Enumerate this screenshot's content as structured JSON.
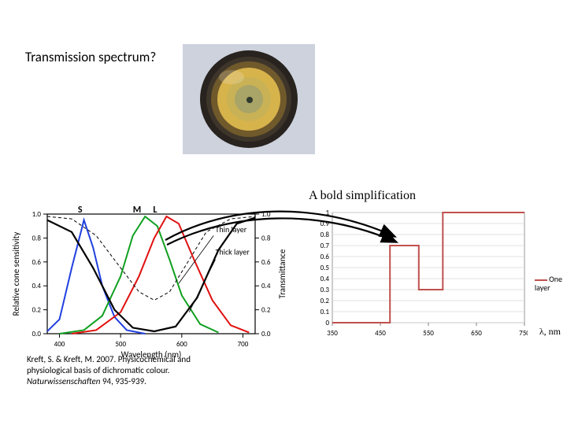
{
  "title": "Transmission spectrum?",
  "simplification_label": "A bold simplification",
  "citation": {
    "line1": "Kreft, S. & Kreft, M. 2007. Physicochemical and",
    "line2": "physiological basis of dichromatic colour.",
    "journal": "Naturwissenschaften",
    "ref": " 94, 935-939."
  },
  "petri": {
    "bg": "#cfd3df",
    "ring_outer": "#2a2522",
    "ring_mid": "#6e5a2a",
    "ring_gold": "#d6b24b",
    "center": "#a8a46a",
    "dot": "#2f3a2e"
  },
  "left_chart": {
    "type": "line",
    "bg": "#ffffff",
    "axis_color": "#000000",
    "xlabel": "Wavelength (nm)",
    "ylabel_left": "Relative cone sensitivity",
    "ylabel_right": "Transmittance",
    "x": {
      "min": 380,
      "max": 720,
      "ticks": [
        400,
        500,
        600,
        700
      ]
    },
    "y": {
      "min": 0,
      "max": 1.0,
      "ticks": [
        0.0,
        0.2,
        0.4,
        0.6,
        0.8,
        1.0
      ]
    },
    "label_fontsize": 11,
    "tick_fontsize": 9,
    "series": {
      "S": {
        "color": "#2040e0",
        "width": 2,
        "letter": "S",
        "points": [
          [
            380,
            0.02
          ],
          [
            400,
            0.12
          ],
          [
            420,
            0.55
          ],
          [
            440,
            0.95
          ],
          [
            455,
            0.72
          ],
          [
            470,
            0.4
          ],
          [
            490,
            0.14
          ],
          [
            510,
            0.03
          ],
          [
            540,
            0.0
          ]
        ]
      },
      "M": {
        "color": "#10a020",
        "width": 2,
        "letter": "M",
        "points": [
          [
            400,
            0.0
          ],
          [
            440,
            0.03
          ],
          [
            470,
            0.15
          ],
          [
            500,
            0.48
          ],
          [
            520,
            0.82
          ],
          [
            540,
            0.98
          ],
          [
            560,
            0.9
          ],
          [
            580,
            0.62
          ],
          [
            600,
            0.32
          ],
          [
            630,
            0.08
          ],
          [
            660,
            0.01
          ]
        ]
      },
      "L": {
        "color": "#e01010",
        "width": 2,
        "letter": "L",
        "points": [
          [
            420,
            0.0
          ],
          [
            460,
            0.03
          ],
          [
            500,
            0.18
          ],
          [
            530,
            0.48
          ],
          [
            555,
            0.8
          ],
          [
            575,
            0.98
          ],
          [
            595,
            0.92
          ],
          [
            620,
            0.62
          ],
          [
            650,
            0.28
          ],
          [
            680,
            0.07
          ],
          [
            710,
            0.01
          ]
        ]
      },
      "thin": {
        "color": "#000000",
        "width": 1,
        "dash": "4,3",
        "label": "Thin layer",
        "points": [
          [
            380,
            0.98
          ],
          [
            420,
            0.96
          ],
          [
            460,
            0.82
          ],
          [
            500,
            0.55
          ],
          [
            530,
            0.35
          ],
          [
            555,
            0.28
          ],
          [
            580,
            0.35
          ],
          [
            610,
            0.6
          ],
          [
            640,
            0.85
          ],
          [
            680,
            0.96
          ],
          [
            720,
            0.98
          ]
        ]
      },
      "thick": {
        "color": "#000000",
        "width": 2.2,
        "label": "Thick layer",
        "points": [
          [
            380,
            0.95
          ],
          [
            420,
            0.85
          ],
          [
            455,
            0.55
          ],
          [
            490,
            0.2
          ],
          [
            520,
            0.05
          ],
          [
            555,
            0.02
          ],
          [
            590,
            0.06
          ],
          [
            625,
            0.3
          ],
          [
            660,
            0.7
          ],
          [
            690,
            0.92
          ],
          [
            720,
            0.97
          ]
        ]
      }
    }
  },
  "right_chart": {
    "type": "step",
    "bg": "#ffffff",
    "axis_color": "#808080",
    "grid_color": "#d9d9d9",
    "series_color": "#c0504d",
    "series_width": 2,
    "legend": "One\nlayer",
    "lambda_label": "λ, nm",
    "x": {
      "min": 350,
      "max": 750,
      "ticks": [
        350,
        450,
        550,
        650,
        750
      ]
    },
    "y": {
      "min": 0,
      "max": 1,
      "ticks": [
        0,
        0.1,
        0.2,
        0.3,
        0.4,
        0.5,
        0.6,
        0.7,
        0.8,
        0.9,
        1
      ]
    },
    "tick_fontsize": 9,
    "step_data": [
      [
        350,
        0
      ],
      [
        470,
        0
      ],
      [
        470,
        0.7
      ],
      [
        530,
        0.7
      ],
      [
        530,
        0.3
      ],
      [
        580,
        0.3
      ],
      [
        580,
        1.0
      ],
      [
        750,
        1.0
      ]
    ]
  }
}
